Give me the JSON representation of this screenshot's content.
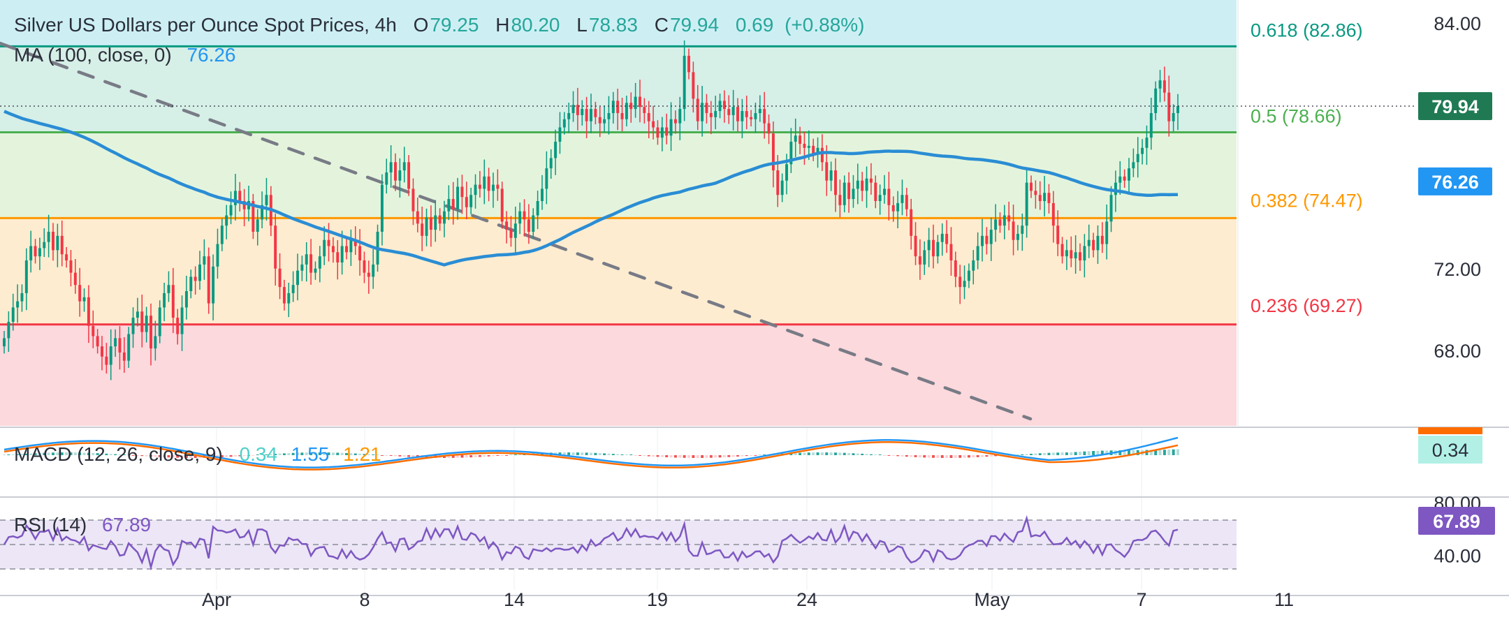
{
  "chart_data": {
    "type": "candlestick",
    "title": "Silver US Dollars per Ounce Spot Prices, 4h",
    "ohlc_header": {
      "o_label": "O",
      "o": "79.25",
      "h_label": "H",
      "h": "80.20",
      "l_label": "L",
      "l": "78.83",
      "c_label": "C",
      "c": "79.94",
      "change": "0.69",
      "change_pct": "(+0.88%)"
    },
    "ma_label": "MA (100, close, 0)",
    "ma_value": "76.26",
    "price_axis": {
      "ticks": [
        "84.00",
        "72.00",
        "68.00"
      ],
      "range": [
        63.3,
        84.6
      ]
    },
    "x_axis": {
      "ticks": [
        "Apr",
        "8",
        "14",
        "19",
        "24",
        "May",
        "7",
        "11"
      ]
    },
    "fib_levels": [
      {
        "label": "0.618 (82.86)",
        "value": 82.86,
        "color": "#089981"
      },
      {
        "label": "0.5 (78.66)",
        "value": 78.66,
        "color": "#4caf50"
      },
      {
        "label": "0.382 (74.47)",
        "value": 74.47,
        "color": "#ff9800"
      },
      {
        "label": "0.236 (69.27)",
        "value": 69.27,
        "color": "#f23645"
      }
    ],
    "current_price": {
      "label": "79.94",
      "value": 79.94
    },
    "ma_price": {
      "label": "76.26",
      "value": 76.26
    },
    "candles_close": [
      68.6,
      69.4,
      70.1,
      70.4,
      70.8,
      72.4,
      73.1,
      72.6,
      73.0,
      73.3,
      73.8,
      72.9,
      73.6,
      72.7,
      72.4,
      71.8,
      71.2,
      70.4,
      70.6,
      69.2,
      68.7,
      68.2,
      67.7,
      67.3,
      68.2,
      68.6,
      67.9,
      67.5,
      68.8,
      69.6,
      69.9,
      68.9,
      69.7,
      68.1,
      68.7,
      70.1,
      70.8,
      71.2,
      69.6,
      68.8,
      70.1,
      70.9,
      71.6,
      71.4,
      72.2,
      72.6,
      70.3,
      72.1,
      73.2,
      74.1,
      74.6,
      75.1,
      75.8,
      75.3,
      74.9,
      75.3,
      73.8,
      74.4,
      75.1,
      75.6,
      74.1,
      72.0,
      71.1,
      70.3,
      70.8,
      71.2,
      71.9,
      72.2,
      72.7,
      71.8,
      72.0,
      72.6,
      73.4,
      73.1,
      72.8,
      72.3,
      73.1,
      72.8,
      73.4,
      73.1,
      72.4,
      71.8,
      71.6,
      72.2,
      73.8,
      76.1,
      76.7,
      77.2,
      76.3,
      76.8,
      77.2,
      75.9,
      74.8,
      74.2,
      73.6,
      74.5,
      73.9,
      74.6,
      74.2,
      74.8,
      75.4,
      74.9,
      76.0,
      75.5,
      75.0,
      75.6,
      76.1,
      75.9,
      76.5,
      75.8,
      76.1,
      75.9,
      74.3,
      73.9,
      73.5,
      74.2,
      74.8,
      74.4,
      73.8,
      74.6,
      75.3,
      75.9,
      76.9,
      77.4,
      78.2,
      78.9,
      79.3,
      79.6,
      80.0,
      79.5,
      79.8,
      79.2,
      79.8,
      79.4,
      79.1,
      79.3,
      79.6,
      80.2,
      79.6,
      79.3,
      80.1,
      79.8,
      80.4,
      79.9,
      79.6,
      79.2,
      78.9,
      78.4,
      78.9,
      78.5,
      79.3,
      79.1,
      79.8,
      82.4,
      81.6,
      80.3,
      79.2,
      80.1,
      79.6,
      79.4,
      79.7,
      80.2,
      79.8,
      79.5,
      79.9,
      79.2,
      79.7,
      79.4,
      79.3,
      79.6,
      79.8,
      79.1,
      78.6,
      76.8,
      75.6,
      76.3,
      77.1,
      78.2,
      78.5,
      78.1,
      77.9,
      78.0,
      77.6,
      77.9,
      77.2,
      76.3,
      76.8,
      75.6,
      75.1,
      76.2,
      75.4,
      75.9,
      76.3,
      75.8,
      76.4,
      76.2,
      75.3,
      75.6,
      75.9,
      75.1,
      74.8,
      75.2,
      75.6,
      74.9,
      73.6,
      72.6,
      72.2,
      72.9,
      73.4,
      72.6,
      73.3,
      73.7,
      73.2,
      72.4,
      71.6,
      71.1,
      71.4,
      71.9,
      72.4,
      73.1,
      73.6,
      73.2,
      73.9,
      74.4,
      74.1,
      74.6,
      74.3,
      73.4,
      73.7,
      74.1,
      76.2,
      75.8,
      75.6,
      75.3,
      75.7,
      75.2,
      74.1,
      73.2,
      72.6,
      72.9,
      72.5,
      72.8,
      72.4,
      73.1,
      73.4,
      72.9,
      73.6,
      73.2,
      74.3,
      75.6,
      76.2,
      76.5,
      76.3,
      76.9,
      77.2,
      77.6,
      77.9,
      78.4,
      79.6,
      80.8,
      81.2,
      80.6,
      79.2,
      79.6,
      79.94
    ],
    "macd_label": "MACD (12, 26, close, 9)",
    "macd_values": {
      "hist": "0.34",
      "macd": "1.55",
      "signal": "1.21"
    },
    "macd_axis_label": "0.34",
    "rsi_label": "RSI (14)",
    "rsi_value": "67.89",
    "rsi_axis": {
      "ticks": [
        "80.00",
        "40.00"
      ],
      "current": "67.89"
    }
  },
  "colors": {
    "up": "#089981",
    "down": "#f23645",
    "ma": "#2a8dd4",
    "trend": "#787b86",
    "macd": "#2196f3",
    "signal": "#ff6d00",
    "rsi": "#7e57c2"
  }
}
